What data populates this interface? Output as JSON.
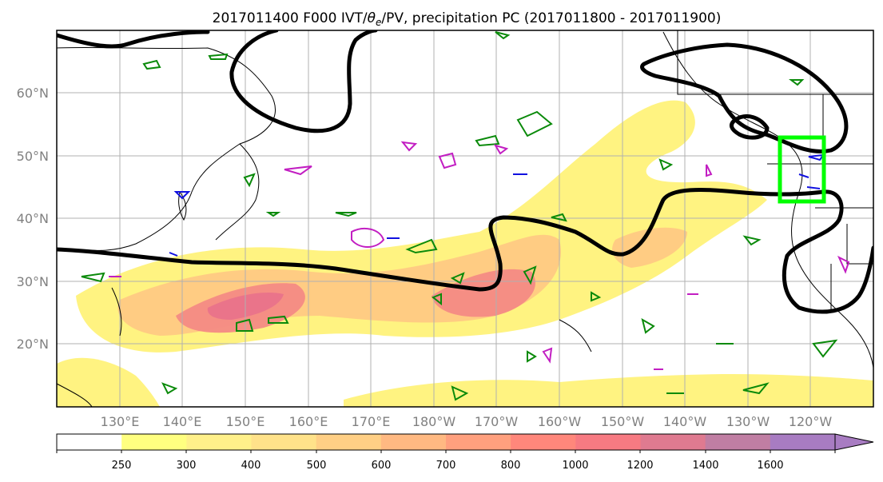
{
  "map": {
    "title_prefix": "2017011400 F000 IVT/",
    "title_theta": "θ",
    "title_sub": "e",
    "title_suffix": "/PV, precipitation PC (2017011800 - 2017011900)",
    "lat_labels": [
      "60°N",
      "50°N",
      "40°N",
      "30°N",
      "20°N"
    ],
    "lon_labels": [
      "130°E",
      "140°E",
      "150°E",
      "160°E",
      "170°E",
      "180°W",
      "170°W",
      "160°W",
      "150°W",
      "140°W",
      "130°W",
      "120°W"
    ],
    "extent": {
      "lon_min": 120,
      "lon_max": 250,
      "lat_min": 10,
      "lat_max": 70
    },
    "highlight_box": {
      "lon": [
        235,
        242
      ],
      "lat": [
        43,
        53
      ],
      "color": "#00ff00"
    }
  },
  "colorbar": {
    "labels": [
      "250",
      "300",
      "400",
      "500",
      "600",
      "700",
      "800",
      "1000",
      "1200",
      "1400",
      "1600"
    ],
    "colors": [
      "#ffffff",
      "#ffff80",
      "#fff08a",
      "#ffe28a",
      "#ffcf85",
      "#ffb982",
      "#ffa07e",
      "#ff877b",
      "#f77a82",
      "#df7a90",
      "#c07ea3",
      "#a87cc2"
    ],
    "extend": "max"
  },
  "colors": {
    "ivt_low": "#fff27a",
    "ivt_mid": "#ffc983",
    "ivt_high": "#f48a84",
    "ivt_max": "#e9738a",
    "pv_contour": "#000000",
    "theta_green": "#0a8a0a",
    "theta_magenta": "#c21ec2",
    "theta_blue": "#1010e0",
    "grid": "#b0b0b0"
  }
}
